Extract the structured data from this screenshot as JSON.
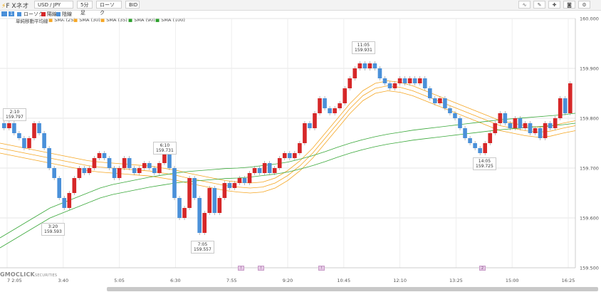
{
  "app": {
    "brand": "F Xネオ"
  },
  "toolbar": {
    "pair": "USD / JPY",
    "interval": "5分足",
    "chart_type": "ローソク",
    "price_type": "BID"
  },
  "chart_mode": {
    "badge": "1",
    "options": [
      "ローソク",
      "陽線",
      "陰線"
    ]
  },
  "legend": {
    "title": "単純移動平均線",
    "items": [
      {
        "label": "SMA (25)",
        "color": "#f5a623"
      },
      {
        "label": "SMA (30)",
        "color": "#f5a623"
      },
      {
        "label": "SMA (35)",
        "color": "#f5a623"
      },
      {
        "label": "SMA (90)",
        "color": "#2ca02c"
      },
      {
        "label": "SMA (100)",
        "color": "#2ca02c"
      }
    ]
  },
  "colors": {
    "up": "#d62728",
    "down": "#4a90d9",
    "sma_short": "#f5a623",
    "sma_long": "#3aa83a"
  },
  "y_ticks": [
    "160.000",
    "159.900",
    "159.800",
    "159.700",
    "159.600",
    "159.500"
  ],
  "x_ticks": [
    "7 2:05",
    "3:40",
    "5:05",
    "6:30",
    "7:55",
    "9:20",
    "10:45",
    "12:10",
    "13:25",
    "15:00",
    "16:25"
  ],
  "callouts": [
    {
      "time": "2:10",
      "price": "159.797"
    },
    {
      "time": "3:20",
      "price": "159.593"
    },
    {
      "time": "6:10",
      "price": "159.731"
    },
    {
      "time": "7:05",
      "price": "159.557"
    },
    {
      "time": "11:05",
      "price": "159.931"
    },
    {
      "time": "14:05",
      "price": "159.725"
    }
  ],
  "event_markers": [
    "!",
    "!",
    "!",
    "2"
  ],
  "footer": {
    "brand": "GMOCLICK",
    "brand_sub": "SECURITIES"
  },
  "chart_data": {
    "type": "candlestick",
    "y_range": [
      159.5,
      160.0
    ],
    "candles": [
      {
        "o": 159.79,
        "c": 159.78
      },
      {
        "o": 159.78,
        "c": 159.79
      },
      {
        "o": 159.79,
        "c": 159.77
      },
      {
        "o": 159.77,
        "c": 159.76
      },
      {
        "o": 159.76,
        "c": 159.74
      },
      {
        "o": 159.74,
        "c": 159.76
      },
      {
        "o": 159.76,
        "c": 159.79
      },
      {
        "o": 159.79,
        "c": 159.77
      },
      {
        "o": 159.77,
        "c": 159.74
      },
      {
        "o": 159.74,
        "c": 159.7
      },
      {
        "o": 159.7,
        "c": 159.68
      },
      {
        "o": 159.68,
        "c": 159.64
      },
      {
        "o": 159.64,
        "c": 159.62
      },
      {
        "o": 159.62,
        "c": 159.65
      },
      {
        "o": 159.65,
        "c": 159.68
      },
      {
        "o": 159.68,
        "c": 159.7
      },
      {
        "o": 159.7,
        "c": 159.69
      },
      {
        "o": 159.69,
        "c": 159.7
      },
      {
        "o": 159.7,
        "c": 159.72
      },
      {
        "o": 159.72,
        "c": 159.73
      },
      {
        "o": 159.73,
        "c": 159.72
      },
      {
        "o": 159.72,
        "c": 159.7
      },
      {
        "o": 159.7,
        "c": 159.68
      },
      {
        "o": 159.68,
        "c": 159.7
      },
      {
        "o": 159.7,
        "c": 159.72
      },
      {
        "o": 159.72,
        "c": 159.7
      },
      {
        "o": 159.7,
        "c": 159.69
      },
      {
        "o": 159.69,
        "c": 159.7
      },
      {
        "o": 159.7,
        "c": 159.71
      },
      {
        "o": 159.71,
        "c": 159.7
      },
      {
        "o": 159.7,
        "c": 159.69
      },
      {
        "o": 159.69,
        "c": 159.71
      },
      {
        "o": 159.71,
        "c": 159.73
      },
      {
        "o": 159.73,
        "c": 159.7
      },
      {
        "o": 159.7,
        "c": 159.64
      },
      {
        "o": 159.64,
        "c": 159.6
      },
      {
        "o": 159.6,
        "c": 159.62
      },
      {
        "o": 159.62,
        "c": 159.68
      },
      {
        "o": 159.68,
        "c": 159.64
      },
      {
        "o": 159.64,
        "c": 159.57
      },
      {
        "o": 159.57,
        "c": 159.61
      },
      {
        "o": 159.61,
        "c": 159.66
      },
      {
        "o": 159.66,
        "c": 159.61
      },
      {
        "o": 159.61,
        "c": 159.64
      },
      {
        "o": 159.64,
        "c": 159.67
      },
      {
        "o": 159.67,
        "c": 159.66
      },
      {
        "o": 159.66,
        "c": 159.67
      },
      {
        "o": 159.67,
        "c": 159.68
      },
      {
        "o": 159.68,
        "c": 159.67
      },
      {
        "o": 159.67,
        "c": 159.69
      },
      {
        "o": 159.69,
        "c": 159.7
      },
      {
        "o": 159.7,
        "c": 159.69
      },
      {
        "o": 159.69,
        "c": 159.71
      },
      {
        "o": 159.71,
        "c": 159.69
      },
      {
        "o": 159.69,
        "c": 159.7
      },
      {
        "o": 159.7,
        "c": 159.72
      },
      {
        "o": 159.72,
        "c": 159.73
      },
      {
        "o": 159.73,
        "c": 159.72
      },
      {
        "o": 159.72,
        "c": 159.73
      },
      {
        "o": 159.73,
        "c": 159.75
      },
      {
        "o": 159.75,
        "c": 159.79
      },
      {
        "o": 159.79,
        "c": 159.78
      },
      {
        "o": 159.78,
        "c": 159.81
      },
      {
        "o": 159.81,
        "c": 159.84
      },
      {
        "o": 159.84,
        "c": 159.82
      },
      {
        "o": 159.82,
        "c": 159.81
      },
      {
        "o": 159.81,
        "c": 159.82
      },
      {
        "o": 159.82,
        "c": 159.83
      },
      {
        "o": 159.83,
        "c": 159.86
      },
      {
        "o": 159.86,
        "c": 159.88
      },
      {
        "o": 159.88,
        "c": 159.9
      },
      {
        "o": 159.9,
        "c": 159.91
      },
      {
        "o": 159.91,
        "c": 159.9
      },
      {
        "o": 159.9,
        "c": 159.91
      },
      {
        "o": 159.91,
        "c": 159.9
      },
      {
        "o": 159.9,
        "c": 159.88
      },
      {
        "o": 159.88,
        "c": 159.87
      },
      {
        "o": 159.87,
        "c": 159.86
      },
      {
        "o": 159.86,
        "c": 159.87
      },
      {
        "o": 159.87,
        "c": 159.88
      },
      {
        "o": 159.88,
        "c": 159.87
      },
      {
        "o": 159.87,
        "c": 159.88
      },
      {
        "o": 159.88,
        "c": 159.87
      },
      {
        "o": 159.87,
        "c": 159.88
      },
      {
        "o": 159.88,
        "c": 159.86
      },
      {
        "o": 159.86,
        "c": 159.84
      },
      {
        "o": 159.84,
        "c": 159.83
      },
      {
        "o": 159.83,
        "c": 159.84
      },
      {
        "o": 159.84,
        "c": 159.82
      },
      {
        "o": 159.82,
        "c": 159.81
      },
      {
        "o": 159.81,
        "c": 159.8
      },
      {
        "o": 159.8,
        "c": 159.78
      },
      {
        "o": 159.78,
        "c": 159.76
      },
      {
        "o": 159.76,
        "c": 159.75
      },
      {
        "o": 159.75,
        "c": 159.74
      },
      {
        "o": 159.74,
        "c": 159.73
      },
      {
        "o": 159.73,
        "c": 159.75
      },
      {
        "o": 159.75,
        "c": 159.77
      },
      {
        "o": 159.77,
        "c": 159.79
      },
      {
        "o": 159.79,
        "c": 159.81
      },
      {
        "o": 159.81,
        "c": 159.79
      },
      {
        "o": 159.79,
        "c": 159.78
      },
      {
        "o": 159.78,
        "c": 159.8
      },
      {
        "o": 159.8,
        "c": 159.78
      },
      {
        "o": 159.78,
        "c": 159.79
      },
      {
        "o": 159.79,
        "c": 159.77
      },
      {
        "o": 159.77,
        "c": 159.78
      },
      {
        "o": 159.78,
        "c": 159.76
      },
      {
        "o": 159.76,
        "c": 159.79
      },
      {
        "o": 159.79,
        "c": 159.78
      },
      {
        "o": 159.78,
        "c": 159.8
      },
      {
        "o": 159.8,
        "c": 159.84
      },
      {
        "o": 159.84,
        "c": 159.81
      },
      {
        "o": 159.81,
        "c": 159.87
      }
    ],
    "sma_short": [
      159.75,
      159.745,
      159.74,
      159.735,
      159.73,
      159.725,
      159.72,
      159.715,
      159.712,
      159.71,
      159.708,
      159.706,
      159.704,
      159.7,
      159.696,
      159.69,
      159.685,
      159.68,
      159.675,
      159.672,
      159.67,
      159.672,
      159.68,
      159.695,
      159.715,
      159.74,
      159.77,
      159.8,
      159.83,
      159.855,
      159.87,
      159.875,
      159.872,
      159.865,
      159.855,
      159.845,
      159.835,
      159.825,
      159.815,
      159.805,
      159.795,
      159.79,
      159.785,
      159.782,
      159.784,
      159.79,
      159.795
    ],
    "sma_long": [
      159.56,
      159.575,
      159.59,
      159.605,
      159.62,
      159.63,
      159.64,
      159.65,
      159.66,
      159.667,
      159.672,
      159.677,
      159.682,
      159.686,
      159.69,
      159.693,
      159.695,
      159.697,
      159.699,
      159.7,
      159.702,
      159.705,
      159.708,
      159.712,
      159.718,
      159.725,
      159.733,
      159.742,
      159.75,
      159.757,
      159.763,
      159.768,
      159.772,
      159.776,
      159.779,
      159.782,
      159.785,
      159.788,
      159.791,
      159.794,
      159.797,
      159.799,
      159.801,
      159.803,
      159.805,
      159.807,
      159.81
    ]
  }
}
